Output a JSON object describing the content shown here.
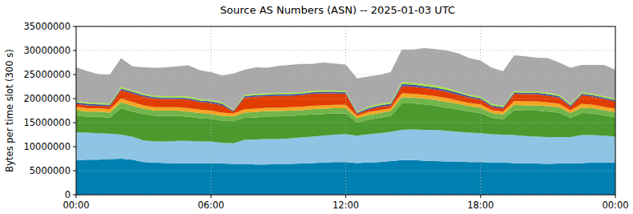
{
  "chart_data": {
    "type": "area",
    "stacked": true,
    "grid": true,
    "title": "Source AS Numbers (ASN) -- 2025-01-03 UTC",
    "y_label": "Bytes per time slot (300 s)",
    "xlim": [
      0,
      24
    ],
    "ylim": [
      0,
      35000000
    ],
    "xticks": [
      {
        "value": 0,
        "label": "00:00"
      },
      {
        "value": 6,
        "label": "06:00"
      },
      {
        "value": 12,
        "label": "12:00"
      },
      {
        "value": 18,
        "label": "18:00"
      },
      {
        "value": 24,
        "label": "00:00"
      }
    ],
    "yticks": [
      0,
      5000000,
      10000000,
      15000000,
      20000000,
      25000000,
      30000000,
      35000000
    ],
    "x": [
      0,
      0.5,
      1,
      1.5,
      2,
      2.5,
      3,
      3.5,
      4,
      4.5,
      5,
      5.5,
      6,
      6.5,
      7,
      7.5,
      8,
      8.5,
      9,
      9.5,
      10,
      10.5,
      11,
      11.5,
      12,
      12.5,
      13,
      13.5,
      14,
      14.5,
      15,
      15.5,
      16,
      16.5,
      17,
      17.5,
      18,
      18.5,
      19,
      19.5,
      20,
      20.5,
      21,
      21.5,
      22,
      22.5,
      23,
      23.5,
      24
    ],
    "series": [
      {
        "color": "#0080b0",
        "values": [
          7200000,
          7300000,
          7300000,
          7400000,
          7500000,
          7300000,
          6800000,
          6700000,
          6600000,
          6600000,
          6500000,
          6500000,
          6600000,
          6500000,
          6400000,
          6400000,
          6300000,
          6300000,
          6400000,
          6400000,
          6500000,
          6600000,
          6700000,
          6800000,
          6800000,
          6600000,
          6700000,
          6800000,
          7000000,
          7200000,
          7200000,
          7100000,
          7000000,
          6900000,
          6900000,
          6800000,
          6800000,
          6700000,
          6700000,
          6600000,
          6500000,
          6500000,
          6400000,
          6500000,
          6500000,
          6600000,
          6700000,
          6700000,
          6700000
        ]
      },
      {
        "color": "#8ec4e4",
        "values": [
          5800000,
          5600000,
          5500000,
          5300000,
          5000000,
          4800000,
          4500000,
          4400000,
          4500000,
          4600000,
          4700000,
          4600000,
          4500000,
          4300000,
          4300000,
          5000000,
          5200000,
          5300000,
          5200000,
          5300000,
          5400000,
          5500000,
          5600000,
          5700000,
          5800000,
          5700000,
          5900000,
          6000000,
          6100000,
          6300000,
          6400000,
          6400000,
          6500000,
          6400000,
          6200000,
          6100000,
          6000000,
          5900000,
          5800000,
          5800000,
          5700000,
          5600000,
          5600000,
          5500000,
          5500000,
          5800000,
          5700000,
          5600000,
          5400000
        ]
      },
      {
        "color": "#4c9a2e",
        "values": [
          3500000,
          3300000,
          3400000,
          3300000,
          5500000,
          5200000,
          5500000,
          5300000,
          5300000,
          5200000,
          5000000,
          4800000,
          4700000,
          4600000,
          4600000,
          4600000,
          4600000,
          4700000,
          4700000,
          4700000,
          4600000,
          4600000,
          4500000,
          4400000,
          4300000,
          2700000,
          3000000,
          3200000,
          3300000,
          5500000,
          5400000,
          5300000,
          5000000,
          4800000,
          4600000,
          4400000,
          4200000,
          3400000,
          3200000,
          5200000,
          5300000,
          5400000,
          5300000,
          5100000,
          4000000,
          4600000,
          4500000,
          4200000,
          4000000
        ]
      },
      {
        "color": "#72b54a",
        "values": [
          1100000,
          1100000,
          1100000,
          1100000,
          1200000,
          1200000,
          1100000,
          1100000,
          1100000,
          1100000,
          1100000,
          1100000,
          1000000,
          1000000,
          1000000,
          1100000,
          1100000,
          1100000,
          1100000,
          1100000,
          1100000,
          1100000,
          1100000,
          1100000,
          1100000,
          900000,
          1000000,
          1000000,
          1000000,
          1300000,
          1200000,
          1200000,
          1200000,
          1200000,
          1200000,
          1100000,
          1100000,
          1000000,
          1000000,
          1100000,
          1100000,
          1100000,
          1100000,
          1100000,
          1000000,
          1100000,
          1100000,
          1100000,
          1100000
        ]
      },
      {
        "color": "#f5a623",
        "values": [
          700000,
          700000,
          700000,
          700000,
          800000,
          800000,
          700000,
          700000,
          700000,
          700000,
          700000,
          700000,
          700000,
          700000,
          600000,
          700000,
          700000,
          700000,
          700000,
          700000,
          700000,
          700000,
          700000,
          700000,
          700000,
          500000,
          600000,
          600000,
          600000,
          800000,
          800000,
          800000,
          800000,
          800000,
          700000,
          700000,
          700000,
          600000,
          600000,
          800000,
          800000,
          800000,
          800000,
          700000,
          600000,
          800000,
          700000,
          700000,
          700000
        ]
      },
      {
        "color": "#e23d00",
        "values": [
          600000,
          600000,
          500000,
          600000,
          1800000,
          1800000,
          1800000,
          1800000,
          1700000,
          1700000,
          1800000,
          1600000,
          1600000,
          1500000,
          400000,
          2400000,
          2500000,
          2400000,
          2500000,
          2400000,
          2400000,
          2500000,
          2500000,
          2400000,
          2300000,
          400000,
          500000,
          700000,
          600000,
          1500000,
          1500000,
          1400000,
          1400000,
          1300000,
          1200000,
          1100000,
          1000000,
          700000,
          600000,
          1500000,
          1500000,
          1500000,
          1400000,
          1300000,
          700000,
          1800000,
          1700000,
          1600000,
          1500000
        ]
      },
      {
        "color": "#3c4fa8",
        "values": [
          300000,
          300000,
          300000,
          300000,
          300000,
          300000,
          300000,
          300000,
          300000,
          300000,
          300000,
          300000,
          300000,
          300000,
          200000,
          300000,
          300000,
          300000,
          300000,
          300000,
          300000,
          300000,
          300000,
          300000,
          300000,
          200000,
          300000,
          300000,
          300000,
          400000,
          400000,
          400000,
          400000,
          400000,
          400000,
          300000,
          300000,
          300000,
          300000,
          300000,
          300000,
          300000,
          300000,
          300000,
          300000,
          300000,
          300000,
          300000,
          300000
        ]
      },
      {
        "color": "#a5e040",
        "values": [
          300000,
          300000,
          300000,
          300000,
          300000,
          300000,
          300000,
          300000,
          300000,
          300000,
          300000,
          300000,
          300000,
          300000,
          200000,
          300000,
          300000,
          300000,
          300000,
          300000,
          300000,
          300000,
          300000,
          300000,
          300000,
          200000,
          300000,
          300000,
          300000,
          400000,
          400000,
          400000,
          400000,
          400000,
          300000,
          300000,
          300000,
          300000,
          300000,
          300000,
          300000,
          300000,
          300000,
          300000,
          300000,
          300000,
          300000,
          300000,
          300000
        ]
      },
      {
        "color": "#a9a9a9",
        "values": [
          7000000,
          6500000,
          6000000,
          6000000,
          6000000,
          5000000,
          5500000,
          5800000,
          6000000,
          6200000,
          6500000,
          6000000,
          5800000,
          5600000,
          7500000,
          5200000,
          5500000,
          5300000,
          5600000,
          5800000,
          5900000,
          5600000,
          5800000,
          5600000,
          5500000,
          7000000,
          6300000,
          6000000,
          6300000,
          6800000,
          6900000,
          7500000,
          7600000,
          7800000,
          7900000,
          7600000,
          7500000,
          7500000,
          7200000,
          7400000,
          7300000,
          7000000,
          7200000,
          6700000,
          7500000,
          5700000,
          6000000,
          6500000,
          6000000
        ]
      }
    ]
  }
}
